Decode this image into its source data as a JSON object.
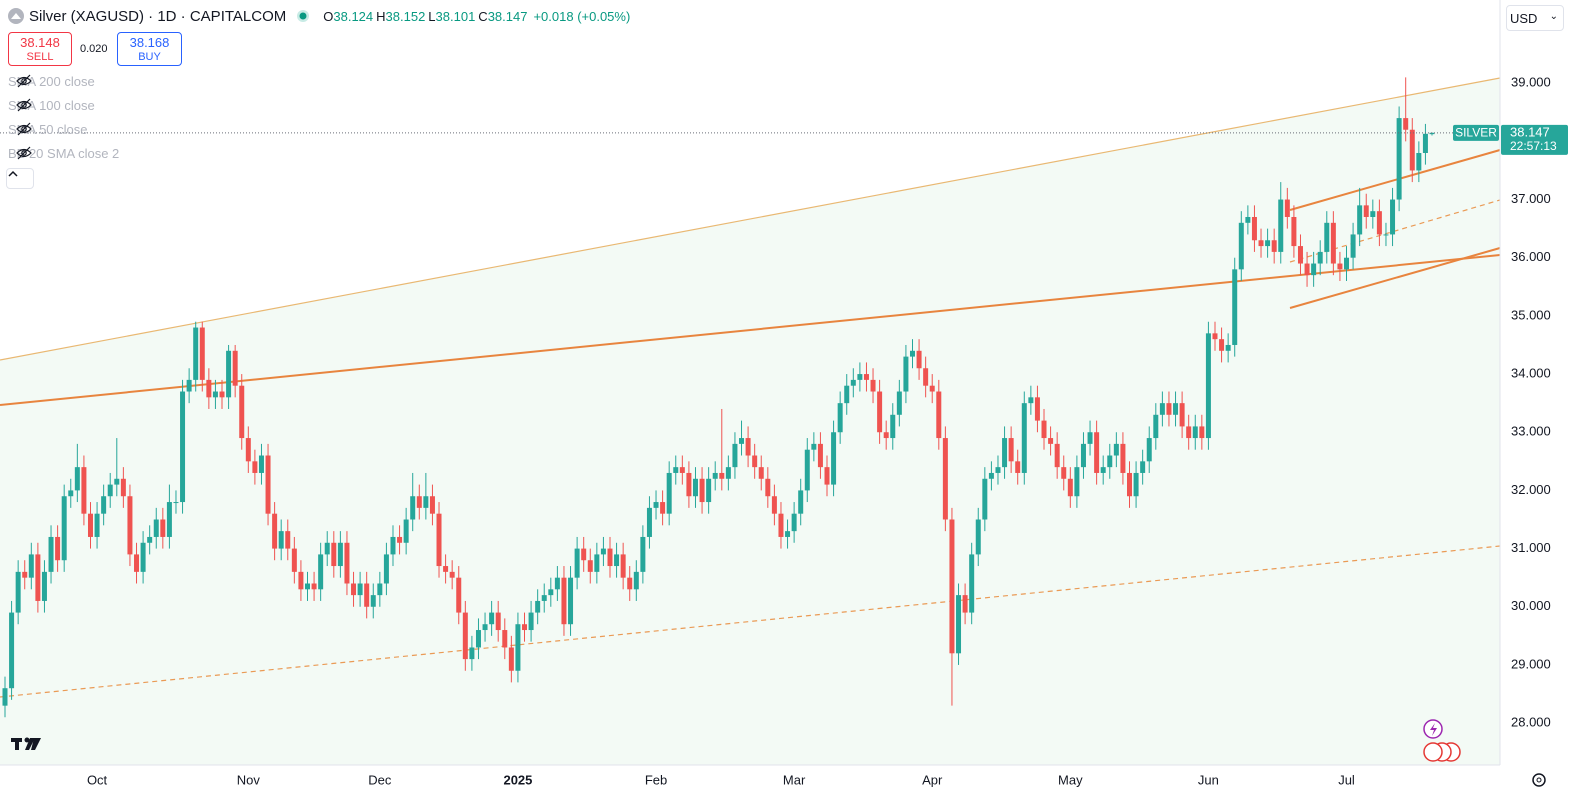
{
  "header": {
    "title": "Silver (XAGUSD) · 1D · CAPITALCOM",
    "o_label": "O",
    "h_label": "H",
    "l_label": "L",
    "c_label": "C",
    "change": "+0.018 (+0.05%)",
    "currency": "USD"
  },
  "trade": {
    "sell_price": "38.148",
    "sell_label": "SELL",
    "spread": "0.020",
    "buy_price": "38.168",
    "buy_label": "BUY"
  },
  "indicators": [
    "SMA 200 close",
    "SMA 100 close",
    "SMA 50 close",
    "BB 20 SMA close 2"
  ],
  "price_tag": {
    "name": "SILVER",
    "countdown": "22:57:13"
  },
  "chart_data": {
    "type": "candlestick",
    "up_color": "#26a69a",
    "down_color": "#ef5350",
    "grid": false,
    "ylim": [
      27.28,
      40.43
    ],
    "yticks": [
      {
        "value": 28,
        "label": "28.000"
      },
      {
        "value": 29,
        "label": "29.000"
      },
      {
        "value": 30,
        "label": "30.000"
      },
      {
        "value": 31,
        "label": "31.000"
      },
      {
        "value": 32,
        "label": "32.000"
      },
      {
        "value": 33,
        "label": "33.000"
      },
      {
        "value": 34,
        "label": "34.000"
      },
      {
        "value": 35,
        "label": "35.000"
      },
      {
        "value": 36,
        "label": "36.000"
      },
      {
        "value": 37,
        "label": "37.000"
      },
      {
        "value": 38,
        "label": "38.000"
      },
      {
        "value": 39,
        "label": "39.000"
      }
    ],
    "categories": [
      null,
      null,
      null,
      null,
      null,
      null,
      null,
      null,
      null,
      null,
      null,
      null,
      null,
      null,
      "Oct",
      null,
      null,
      null,
      null,
      null,
      null,
      null,
      null,
      null,
      null,
      null,
      null,
      null,
      null,
      null,
      null,
      null,
      null,
      null,
      null,
      null,
      null,
      "Nov",
      null,
      null,
      null,
      null,
      null,
      null,
      null,
      null,
      null,
      null,
      null,
      null,
      null,
      null,
      null,
      null,
      null,
      null,
      null,
      "Dec",
      null,
      null,
      null,
      null,
      null,
      null,
      null,
      null,
      null,
      null,
      null,
      null,
      null,
      null,
      null,
      null,
      null,
      null,
      null,
      null,
      "2025",
      null,
      null,
      null,
      null,
      null,
      null,
      null,
      null,
      null,
      null,
      null,
      null,
      null,
      null,
      null,
      null,
      null,
      null,
      null,
      null,
      "Feb",
      null,
      null,
      null,
      null,
      null,
      null,
      null,
      null,
      null,
      null,
      null,
      null,
      null,
      null,
      null,
      null,
      null,
      null,
      null,
      null,
      "Mar",
      null,
      null,
      null,
      null,
      null,
      null,
      null,
      null,
      null,
      null,
      null,
      null,
      null,
      null,
      null,
      null,
      null,
      null,
      null,
      null,
      "Apr",
      null,
      null,
      null,
      null,
      null,
      null,
      null,
      null,
      null,
      null,
      null,
      null,
      null,
      null,
      null,
      null,
      null,
      null,
      null,
      null,
      "May",
      null,
      null,
      null,
      null,
      null,
      null,
      null,
      null,
      null,
      null,
      null,
      null,
      null,
      null,
      null,
      null,
      null,
      null,
      null,
      null,
      "Jun",
      null,
      null,
      null,
      null,
      null,
      null,
      null,
      null,
      null,
      null,
      null,
      null,
      null,
      null,
      null,
      null,
      null,
      null,
      null,
      null,
      "Jul",
      null,
      null,
      null,
      null,
      null,
      null,
      null,
      null,
      null,
      null,
      null,
      null,
      null
    ],
    "open": [
      28.3,
      28.6,
      29.9,
      30.6,
      30.5,
      30.9,
      30.1,
      30.6,
      31.2,
      30.8,
      31.9,
      32.0,
      32.4,
      31.6,
      31.2,
      31.6,
      31.9,
      32.1,
      32.2,
      31.9,
      30.9,
      30.6,
      31.1,
      31.2,
      31.5,
      31.2,
      31.8,
      31.8,
      33.7,
      33.9,
      34.8,
      33.9,
      33.6,
      33.7,
      33.6,
      34.4,
      33.8,
      32.9,
      32.5,
      32.3,
      32.6,
      31.6,
      31.0,
      31.3,
      31.0,
      30.6,
      30.3,
      30.4,
      30.3,
      30.9,
      31.1,
      30.7,
      31.1,
      30.4,
      30.2,
      30.4,
      30.0,
      30.2,
      30.4,
      30.9,
      31.2,
      31.1,
      31.5,
      31.9,
      31.7,
      31.9,
      31.6,
      30.7,
      30.6,
      30.5,
      29.9,
      29.1,
      29.3,
      29.6,
      29.7,
      29.9,
      29.6,
      29.3,
      28.9,
      29.7,
      29.6,
      29.9,
      30.1,
      30.2,
      30.3,
      30.5,
      29.7,
      30.5,
      31.0,
      30.8,
      30.6,
      30.9,
      31.0,
      30.7,
      30.9,
      30.5,
      30.3,
      30.6,
      31.2,
      31.7,
      31.8,
      31.6,
      32.3,
      32.4,
      32.3,
      31.9,
      32.2,
      31.8,
      32.2,
      32.3,
      32.2,
      32.4,
      32.8,
      32.9,
      32.6,
      32.4,
      32.2,
      31.9,
      31.6,
      31.2,
      31.3,
      31.6,
      32.0,
      32.7,
      32.8,
      32.4,
      32.1,
      33.0,
      33.5,
      33.8,
      33.9,
      34.0,
      33.9,
      33.7,
      33.0,
      32.9,
      33.3,
      33.7,
      34.3,
      34.4,
      34.1,
      33.8,
      33.7,
      32.9,
      31.5,
      29.2,
      30.2,
      29.9,
      30.9,
      31.5,
      32.2,
      32.3,
      32.4,
      32.9,
      32.5,
      32.3,
      33.5,
      33.6,
      33.2,
      32.9,
      32.8,
      32.4,
      32.2,
      31.9,
      32.4,
      32.8,
      33.0,
      32.3,
      32.4,
      32.6,
      32.8,
      32.3,
      31.9,
      32.3,
      32.5,
      32.9,
      33.3,
      33.5,
      33.3,
      33.5,
      33.1,
      32.9,
      33.1,
      32.9,
      34.7,
      34.6,
      34.4,
      34.5,
      35.8,
      36.6,
      36.7,
      36.3,
      36.2,
      36.3,
      36.1,
      37.0,
      36.7,
      36.2,
      35.9,
      35.7,
      35.9,
      36.1,
      36.6,
      35.9,
      35.8,
      36.0,
      36.4,
      36.9,
      36.7,
      36.8,
      36.4,
      36.4,
      37.0,
      38.4,
      38.2,
      37.5,
      37.8,
      38.124
    ],
    "high": [
      28.8,
      30.1,
      30.8,
      30.8,
      31.1,
      31.1,
      30.8,
      31.4,
      31.4,
      32.1,
      32.2,
      32.8,
      32.6,
      31.8,
      31.8,
      32.1,
      32.3,
      32.9,
      32.4,
      32.1,
      31.1,
      31.3,
      31.4,
      31.7,
      31.7,
      32.1,
      32.0,
      33.9,
      34.1,
      34.9,
      34.9,
      34.1,
      33.9,
      33.9,
      34.5,
      34.5,
      34.0,
      33.1,
      32.7,
      32.8,
      32.8,
      31.8,
      31.5,
      31.5,
      31.2,
      30.8,
      30.6,
      30.6,
      31.1,
      31.3,
      31.3,
      31.3,
      31.3,
      30.6,
      30.6,
      30.6,
      30.4,
      30.6,
      31.1,
      31.4,
      31.4,
      31.7,
      32.3,
      32.1,
      32.3,
      32.1,
      31.8,
      30.9,
      30.8,
      30.7,
      30.1,
      29.5,
      29.8,
      29.9,
      30.1,
      30.1,
      29.8,
      29.5,
      29.9,
      29.9,
      30.1,
      30.3,
      30.4,
      30.5,
      30.7,
      30.7,
      30.7,
      31.2,
      31.2,
      31.0,
      31.1,
      31.2,
      31.2,
      31.1,
      31.1,
      30.7,
      30.8,
      31.4,
      31.9,
      32.0,
      32.0,
      32.5,
      32.6,
      32.6,
      32.5,
      32.4,
      32.4,
      32.4,
      32.5,
      33.4,
      32.6,
      33.0,
      33.2,
      33.1,
      32.8,
      32.6,
      32.4,
      32.1,
      31.8,
      31.5,
      31.8,
      32.2,
      32.9,
      33.0,
      33.0,
      32.6,
      33.2,
      33.7,
      34.0,
      34.1,
      34.2,
      34.2,
      34.1,
      33.9,
      33.2,
      33.5,
      33.9,
      34.5,
      34.6,
      34.6,
      34.3,
      34.0,
      33.9,
      33.1,
      31.7,
      30.4,
      30.4,
      31.1,
      31.7,
      32.4,
      32.5,
      32.6,
      33.1,
      33.1,
      32.7,
      33.7,
      33.8,
      33.8,
      33.4,
      33.1,
      33.0,
      32.6,
      32.4,
      32.6,
      33.0,
      33.2,
      33.2,
      32.6,
      32.8,
      33.0,
      33.0,
      32.5,
      32.5,
      32.7,
      33.1,
      33.5,
      33.7,
      33.7,
      33.7,
      33.7,
      33.3,
      33.3,
      33.3,
      34.9,
      34.9,
      34.8,
      34.7,
      36.0,
      36.8,
      36.9,
      36.9,
      36.5,
      36.5,
      36.5,
      37.3,
      37.2,
      36.9,
      36.4,
      36.1,
      36.1,
      36.3,
      36.8,
      36.8,
      36.1,
      36.2,
      36.6,
      37.2,
      37.1,
      37.0,
      37.0,
      36.6,
      37.2,
      38.6,
      39.1,
      38.4,
      38.0,
      38.3,
      38.152
    ],
    "low": [
      28.1,
      28.4,
      29.7,
      30.3,
      30.3,
      29.9,
      29.9,
      30.4,
      30.6,
      30.6,
      31.7,
      31.8,
      31.4,
      31.0,
      31.0,
      31.4,
      31.7,
      31.9,
      31.7,
      30.7,
      30.4,
      30.4,
      30.9,
      31.0,
      31.0,
      31.0,
      31.6,
      31.6,
      33.5,
      33.7,
      33.7,
      33.4,
      33.4,
      33.4,
      33.4,
      33.6,
      32.7,
      32.3,
      32.1,
      32.1,
      31.4,
      30.8,
      30.8,
      30.8,
      30.4,
      30.1,
      30.1,
      30.1,
      30.1,
      30.7,
      30.5,
      30.5,
      30.2,
      30.0,
      30.0,
      29.8,
      29.8,
      30.0,
      30.2,
      30.7,
      30.9,
      30.9,
      31.3,
      31.5,
      31.5,
      31.4,
      30.5,
      30.4,
      30.3,
      29.7,
      28.9,
      28.9,
      29.1,
      29.4,
      29.5,
      29.4,
      29.1,
      28.7,
      28.7,
      29.4,
      29.4,
      29.7,
      29.9,
      30.0,
      30.1,
      29.5,
      29.5,
      30.3,
      30.6,
      30.4,
      30.4,
      30.7,
      30.5,
      30.5,
      30.3,
      30.1,
      30.1,
      30.4,
      31.0,
      31.5,
      31.4,
      31.4,
      32.1,
      32.1,
      31.7,
      31.7,
      31.6,
      31.6,
      32.0,
      32.0,
      32.0,
      32.2,
      32.6,
      32.4,
      32.2,
      32.0,
      31.7,
      31.4,
      31.0,
      31.0,
      31.1,
      31.4,
      31.8,
      32.5,
      32.2,
      31.9,
      31.9,
      32.8,
      33.3,
      33.6,
      33.7,
      33.7,
      33.5,
      32.8,
      32.7,
      32.7,
      33.1,
      33.5,
      34.1,
      33.9,
      33.6,
      33.5,
      32.7,
      31.3,
      28.3,
      29.0,
      29.7,
      29.7,
      30.7,
      31.3,
      32.0,
      32.1,
      32.2,
      32.3,
      32.1,
      32.1,
      33.3,
      33.0,
      32.7,
      32.6,
      32.2,
      32.0,
      31.7,
      31.7,
      32.2,
      32.6,
      32.1,
      32.1,
      32.2,
      32.4,
      32.1,
      31.7,
      31.7,
      32.1,
      32.3,
      32.7,
      33.1,
      33.1,
      33.1,
      32.9,
      32.7,
      32.7,
      32.7,
      32.7,
      34.4,
      34.2,
      34.2,
      34.3,
      35.6,
      36.4,
      36.1,
      36.0,
      36.0,
      35.9,
      35.9,
      36.5,
      36.0,
      35.7,
      35.5,
      35.5,
      35.7,
      35.9,
      35.7,
      35.6,
      35.6,
      35.8,
      36.2,
      36.5,
      36.5,
      36.2,
      36.2,
      36.2,
      36.8,
      38.0,
      37.3,
      37.3,
      37.6,
      38.101
    ],
    "close": [
      28.6,
      29.9,
      30.6,
      30.5,
      30.9,
      30.1,
      30.6,
      31.2,
      30.8,
      31.9,
      32.0,
      32.4,
      31.6,
      31.2,
      31.6,
      31.9,
      32.1,
      32.2,
      31.9,
      30.9,
      30.6,
      31.1,
      31.2,
      31.5,
      31.2,
      31.8,
      31.8,
      33.7,
      33.9,
      34.8,
      33.9,
      33.6,
      33.7,
      33.6,
      34.4,
      33.8,
      32.9,
      32.5,
      32.3,
      32.6,
      31.6,
      31.0,
      31.3,
      31.0,
      30.6,
      30.3,
      30.4,
      30.3,
      30.9,
      31.1,
      30.7,
      31.1,
      30.4,
      30.2,
      30.4,
      30.0,
      30.2,
      30.4,
      30.9,
      31.2,
      31.1,
      31.5,
      31.9,
      31.7,
      31.9,
      31.6,
      30.7,
      30.6,
      30.5,
      29.9,
      29.1,
      29.3,
      29.6,
      29.7,
      29.9,
      29.6,
      29.3,
      28.9,
      29.7,
      29.6,
      29.9,
      30.1,
      30.2,
      30.3,
      30.5,
      29.7,
      30.5,
      31.0,
      30.8,
      30.6,
      30.9,
      31.0,
      30.7,
      30.9,
      30.5,
      30.3,
      30.6,
      31.2,
      31.7,
      31.8,
      31.6,
      32.3,
      32.4,
      32.3,
      31.9,
      32.2,
      31.8,
      32.2,
      32.3,
      32.2,
      32.4,
      32.8,
      32.9,
      32.6,
      32.4,
      32.2,
      31.9,
      31.6,
      31.2,
      31.3,
      31.6,
      32.0,
      32.7,
      32.8,
      32.4,
      32.1,
      33.0,
      33.5,
      33.8,
      33.9,
      34.0,
      33.9,
      33.7,
      33.0,
      32.9,
      33.3,
      33.7,
      34.3,
      34.4,
      34.1,
      33.8,
      33.7,
      32.9,
      31.5,
      29.2,
      30.2,
      29.9,
      30.9,
      31.5,
      32.2,
      32.3,
      32.4,
      32.9,
      32.5,
      32.3,
      33.5,
      33.6,
      33.2,
      32.9,
      32.8,
      32.4,
      32.2,
      31.9,
      32.4,
      32.8,
      33.0,
      32.3,
      32.4,
      32.6,
      32.8,
      32.3,
      31.9,
      32.3,
      32.5,
      32.9,
      33.3,
      33.5,
      33.3,
      33.5,
      33.1,
      32.9,
      33.1,
      32.9,
      34.7,
      34.6,
      34.4,
      34.5,
      35.8,
      36.6,
      36.7,
      36.3,
      36.2,
      36.3,
      36.1,
      37.0,
      36.7,
      36.2,
      35.9,
      35.7,
      35.9,
      36.1,
      36.6,
      35.9,
      35.8,
      36.0,
      36.4,
      36.9,
      36.7,
      36.8,
      36.4,
      36.4,
      37.0,
      38.4,
      38.2,
      37.5,
      37.8,
      38.13,
      38.147
    ]
  }
}
